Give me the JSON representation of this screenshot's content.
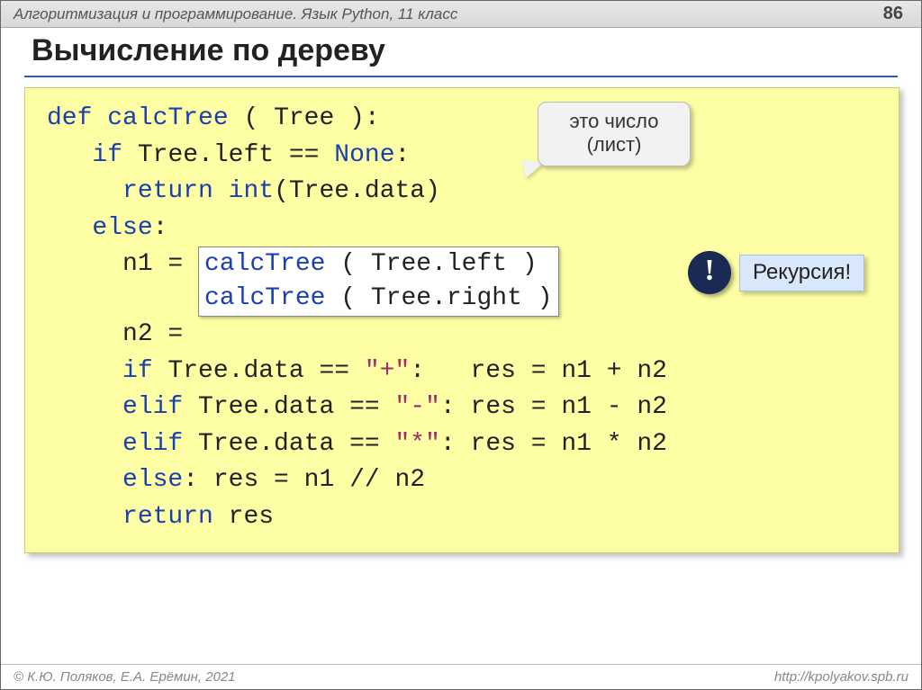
{
  "header": {
    "title": "Алгоритмизация и программирование. Язык Python, 11 класс",
    "page": "86"
  },
  "title": "Вычисление по дереву",
  "code": {
    "l1_def": "def",
    "l1_fn": "calcTree",
    "l1_rest": " ( Tree ):",
    "l2_if": "if",
    "l2_mid": " Tree.left == ",
    "l2_none": "None",
    "l2_colon": ":",
    "l3_ret": "return",
    "l3_int": "int",
    "l3_rest": "(Tree.data)",
    "l4_else": "else",
    "l4_colon": ":",
    "l5_pre": "n1 = ",
    "box1_fn": "calcTree",
    "box1_rest": " ( Tree.left )",
    "l6_pre": "n2 = ",
    "box2_fn": "calcTree",
    "box2_rest": " ( Tree.right )",
    "l7_if": "if",
    "l7_mid": " Tree.data == ",
    "l7_str": "\"+\"",
    "l7_rest": ":   res = n1 + n2",
    "l8_elif": "elif",
    "l8_mid": " Tree.data == ",
    "l8_str": "\"-\"",
    "l8_rest": ": res = n1 - n2",
    "l9_elif": "elif",
    "l9_mid": " Tree.data == ",
    "l9_str": "\"*\"",
    "l9_rest": ": res = n1 * n2",
    "l10_else": "else",
    "l10_rest": ": res = n1 // n2",
    "l11_ret": "return",
    "l11_res": " res"
  },
  "callouts": {
    "leaf1": "это число",
    "leaf2": "(лист)",
    "bang": "!",
    "recursion": "Рекурсия!"
  },
  "footer": {
    "left": "© К.Ю. Поляков, Е.А. Ерёмин, 2021",
    "right": "http://kpolyakov.spb.ru"
  },
  "colors": {
    "codebox_bg": "#feffa5",
    "keyword": "#1a3fb0",
    "string": "#a02a6a",
    "callout_bg": "#f2f2f2",
    "recursion_bg": "#d9e7fb",
    "bang_bg": "#1a2a55",
    "underline": "#2b5ea8"
  }
}
